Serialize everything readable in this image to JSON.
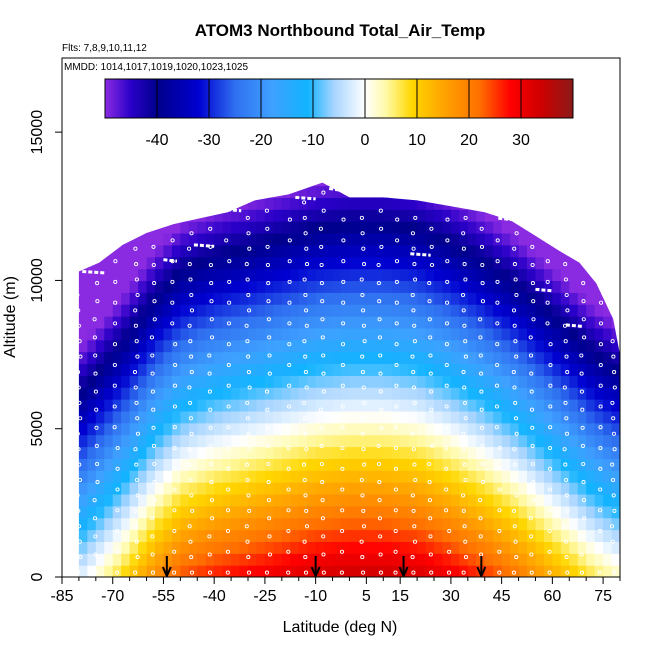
{
  "chart_data": {
    "type": "heatmap",
    "title": "ATOM3 Northbound Total_Air_Temp",
    "flights_label": "Flts: 7,8,9,10,11,12",
    "dates_label": "MMDD: 1014,1017,1019,1020,1023,1025",
    "xlabel": "Latitude (deg N)",
    "ylabel": "Altitude (m)",
    "xlim": [
      -85,
      80
    ],
    "ylim": [
      0,
      17500
    ],
    "x_ticks": [
      -85,
      -70,
      -55,
      -40,
      -25,
      -10,
      5,
      15,
      30,
      45,
      60,
      75
    ],
    "x_minor_ticks": [
      -80,
      -75,
      -65,
      -60,
      -50,
      -45,
      -35,
      -30,
      -20,
      -15,
      -5,
      0,
      10,
      20,
      25,
      35,
      40,
      50,
      55,
      65,
      70,
      80
    ],
    "y_ticks": [
      0,
      5000,
      10000,
      15000
    ],
    "colorbar": {
      "range": [
        -50,
        40
      ],
      "ticks": [
        -40,
        -30,
        -20,
        -10,
        0,
        10,
        20,
        30
      ],
      "stops": [
        {
          "value": -50,
          "color": "#8a2be2"
        },
        {
          "value": -45,
          "color": "#2a00c8"
        },
        {
          "value": -40,
          "color": "#00008b"
        },
        {
          "value": -32,
          "color": "#0000d0"
        },
        {
          "value": -25,
          "color": "#2f6ff0"
        },
        {
          "value": -18,
          "color": "#3fa0ff"
        },
        {
          "value": -11,
          "color": "#12b4ff"
        },
        {
          "value": -6,
          "color": "#a6d4ff"
        },
        {
          "value": 0,
          "color": "#ffffff"
        },
        {
          "value": 4,
          "color": "#fffaa8"
        },
        {
          "value": 9,
          "color": "#ffd700"
        },
        {
          "value": 15,
          "color": "#ffa500"
        },
        {
          "value": 22,
          "color": "#ff7000"
        },
        {
          "value": 28,
          "color": "#ff0000"
        },
        {
          "value": 34,
          "color": "#cd0000"
        },
        {
          "value": 40,
          "color": "#8b1a1a"
        }
      ]
    },
    "lapse_rate_c_per_km": 6.2,
    "domain_envelope": [
      {
        "lat": -80,
        "top": 10300
      },
      {
        "lat": -74,
        "top": 10600
      },
      {
        "lat": -67,
        "top": 11200
      },
      {
        "lat": -60,
        "top": 11600
      },
      {
        "lat": -52,
        "top": 11900
      },
      {
        "lat": -44,
        "top": 12100
      },
      {
        "lat": -36,
        "top": 12300
      },
      {
        "lat": -28,
        "top": 12700
      },
      {
        "lat": -18,
        "top": 12900
      },
      {
        "lat": -8,
        "top": 13300
      },
      {
        "lat": 0,
        "top": 12800
      },
      {
        "lat": 10,
        "top": 12800
      },
      {
        "lat": 20,
        "top": 12700
      },
      {
        "lat": 30,
        "top": 12500
      },
      {
        "lat": 40,
        "top": 12300
      },
      {
        "lat": 48,
        "top": 12000
      },
      {
        "lat": 55,
        "top": 11500
      },
      {
        "lat": 62,
        "top": 11000
      },
      {
        "lat": 68,
        "top": 10600
      },
      {
        "lat": 73,
        "top": 9900
      },
      {
        "lat": 78,
        "top": 8700
      },
      {
        "lat": 80,
        "top": 7500
      }
    ],
    "surface_temp_profile": [
      {
        "lat": -80,
        "t": -2
      },
      {
        "lat": -74,
        "t": 3
      },
      {
        "lat": -66,
        "t": 10
      },
      {
        "lat": -58,
        "t": 18
      },
      {
        "lat": -50,
        "t": 24
      },
      {
        "lat": -40,
        "t": 27
      },
      {
        "lat": -30,
        "t": 29
      },
      {
        "lat": -20,
        "t": 31
      },
      {
        "lat": -10,
        "t": 33
      },
      {
        "lat": 0,
        "t": 34
      },
      {
        "lat": 10,
        "t": 34
      },
      {
        "lat": 20,
        "t": 33
      },
      {
        "lat": 30,
        "t": 30
      },
      {
        "lat": 40,
        "t": 26
      },
      {
        "lat": 50,
        "t": 21
      },
      {
        "lat": 58,
        "t": 16
      },
      {
        "lat": 66,
        "t": 11
      },
      {
        "lat": 72,
        "t": 7
      },
      {
        "lat": 80,
        "t": 3
      }
    ],
    "profile_marker_latitudes": [
      -54,
      -10,
      16,
      39
    ],
    "data_track_latitudes": [
      -80,
      -75,
      -69,
      -63,
      -58,
      -52,
      -47,
      -41,
      -36,
      -30,
      -24,
      -18,
      -13,
      -8,
      -2,
      4,
      9,
      14,
      19,
      24,
      29,
      34,
      39,
      44,
      49,
      54,
      59,
      64,
      69,
      74,
      78
    ],
    "flight_level_segments": [
      {
        "lat_start": -79,
        "lat_end": -72,
        "alt": 10300
      },
      {
        "lat_start": -55,
        "lat_end": -51,
        "alt": 10700
      },
      {
        "lat_start": -46,
        "lat_end": -40,
        "alt": 11200
      },
      {
        "lat_start": -38,
        "lat_end": -32,
        "alt": 12400
      },
      {
        "lat_start": -16,
        "lat_end": -10,
        "alt": 12800
      },
      {
        "lat_start": -6,
        "lat_end": -3,
        "alt": 13100
      },
      {
        "lat_start": 18,
        "lat_end": 24,
        "alt": 10900
      },
      {
        "lat_start": 44,
        "lat_end": 48,
        "alt": 12100
      },
      {
        "lat_start": 55,
        "lat_end": 60,
        "alt": 9700
      },
      {
        "lat_start": 64,
        "lat_end": 69,
        "alt": 8500
      }
    ]
  }
}
